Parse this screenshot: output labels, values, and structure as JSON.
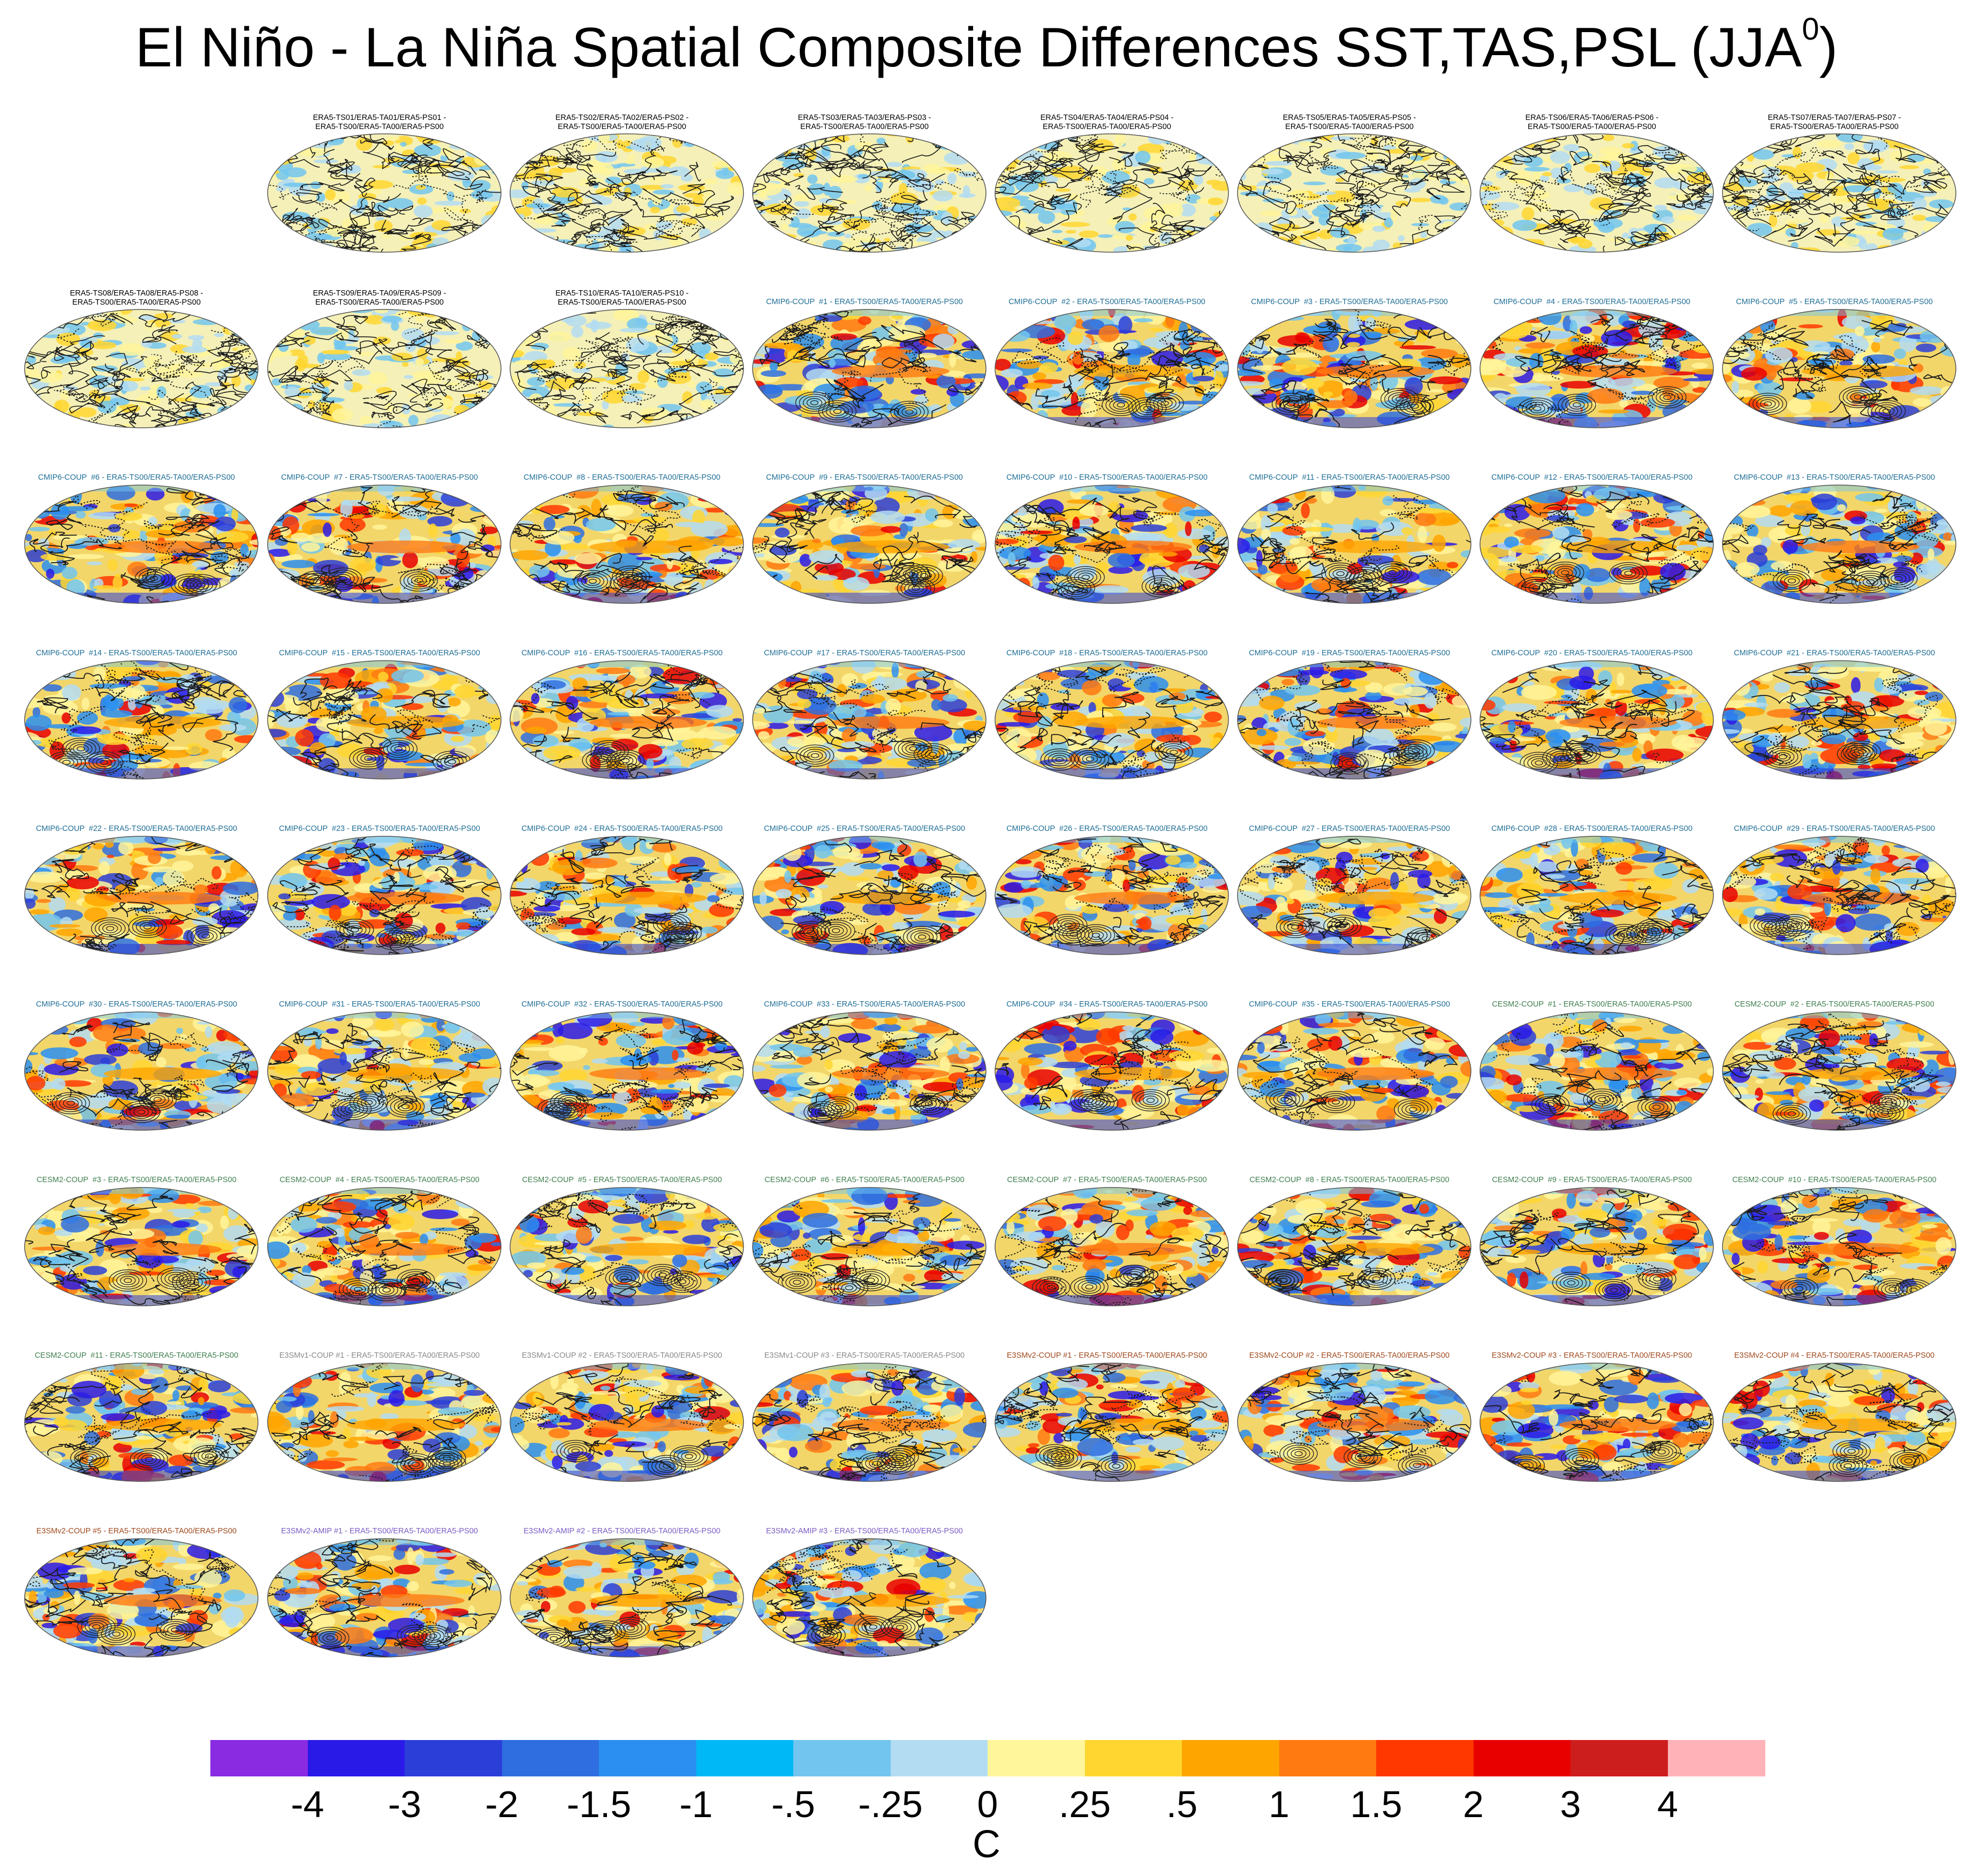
{
  "title": {
    "text": "El Niño - La Niña Spatial Composite Differences SST,TAS,PSL (JJA",
    "superscript": "0",
    "close": ")"
  },
  "panels": [
    {
      "label": "ERA5-TS01/ERA5-TA01/ERA5-PS01 -\nERA5-TS00/ERA5-TA00/ERA5-PS00",
      "group": "era5"
    },
    {
      "label": "ERA5-TS02/ERA5-TA02/ERA5-PS02 -\nERA5-TS00/ERA5-TA00/ERA5-PS00",
      "group": "era5"
    },
    {
      "label": "ERA5-TS03/ERA5-TA03/ERA5-PS03 -\nERA5-TS00/ERA5-TA00/ERA5-PS00",
      "group": "era5"
    },
    {
      "label": "ERA5-TS04/ERA5-TA04/ERA5-PS04 -\nERA5-TS00/ERA5-TA00/ERA5-PS00",
      "group": "era5"
    },
    {
      "label": "ERA5-TS05/ERA5-TA05/ERA5-PS05 -\nERA5-TS00/ERA5-TA00/ERA5-PS00",
      "group": "era5"
    },
    {
      "label": "ERA5-TS06/ERA5-TA06/ERA5-PS06 -\nERA5-TS00/ERA5-TA00/ERA5-PS00",
      "group": "era5"
    },
    {
      "label": "ERA5-TS07/ERA5-TA07/ERA5-PS07 -\nERA5-TS00/ERA5-TA00/ERA5-PS00",
      "group": "era5"
    },
    {
      "label": "ERA5-TS08/ERA5-TA08/ERA5-PS08 -\nERA5-TS00/ERA5-TA00/ERA5-PS00",
      "group": "era5"
    },
    {
      "label": "ERA5-TS09/ERA5-TA09/ERA5-PS09 -\nERA5-TS00/ERA5-TA00/ERA5-PS00",
      "group": "era5"
    },
    {
      "label": "ERA5-TS10/ERA5-TA10/ERA5-PS10 -\nERA5-TS00/ERA5-TA00/ERA5-PS00",
      "group": "era5"
    },
    {
      "label": "CMIP6-COUP  #1 - ERA5-TS00/ERA5-TA00/ERA5-PS00",
      "group": "cmip6"
    },
    {
      "label": "CMIP6-COUP  #2 - ERA5-TS00/ERA5-TA00/ERA5-PS00",
      "group": "cmip6"
    },
    {
      "label": "CMIP6-COUP  #3 - ERA5-TS00/ERA5-TA00/ERA5-PS00",
      "group": "cmip6"
    },
    {
      "label": "CMIP6-COUP  #4 - ERA5-TS00/ERA5-TA00/ERA5-PS00",
      "group": "cmip6"
    },
    {
      "label": "CMIP6-COUP  #5 - ERA5-TS00/ERA5-TA00/ERA5-PS00",
      "group": "cmip6"
    },
    {
      "label": "CMIP6-COUP  #6 - ERA5-TS00/ERA5-TA00/ERA5-PS00",
      "group": "cmip6"
    },
    {
      "label": "CMIP6-COUP  #7 - ERA5-TS00/ERA5-TA00/ERA5-PS00",
      "group": "cmip6"
    },
    {
      "label": "CMIP6-COUP  #8 - ERA5-TS00/ERA5-TA00/ERA5-PS00",
      "group": "cmip6"
    },
    {
      "label": "CMIP6-COUP  #9 - ERA5-TS00/ERA5-TA00/ERA5-PS00",
      "group": "cmip6"
    },
    {
      "label": "CMIP6-COUP  #10 - ERA5-TS00/ERA5-TA00/ERA5-PS00",
      "group": "cmip6"
    },
    {
      "label": "CMIP6-COUP  #11 - ERA5-TS00/ERA5-TA00/ERA5-PS00",
      "group": "cmip6"
    },
    {
      "label": "CMIP6-COUP  #12 - ERA5-TS00/ERA5-TA00/ERA5-PS00",
      "group": "cmip6"
    },
    {
      "label": "CMIP6-COUP  #13 - ERA5-TS00/ERA5-TA00/ERA5-PS00",
      "group": "cmip6"
    },
    {
      "label": "CMIP6-COUP  #14 - ERA5-TS00/ERA5-TA00/ERA5-PS00",
      "group": "cmip6"
    },
    {
      "label": "CMIP6-COUP  #15 - ERA5-TS00/ERA5-TA00/ERA5-PS00",
      "group": "cmip6"
    },
    {
      "label": "CMIP6-COUP  #16 - ERA5-TS00/ERA5-TA00/ERA5-PS00",
      "group": "cmip6"
    },
    {
      "label": "CMIP6-COUP  #17 - ERA5-TS00/ERA5-TA00/ERA5-PS00",
      "group": "cmip6"
    },
    {
      "label": "CMIP6-COUP  #18 - ERA5-TS00/ERA5-TA00/ERA5-PS00",
      "group": "cmip6"
    },
    {
      "label": "CMIP6-COUP  #19 - ERA5-TS00/ERA5-TA00/ERA5-PS00",
      "group": "cmip6"
    },
    {
      "label": "CMIP6-COUP  #20 - ERA5-TS00/ERA5-TA00/ERA5-PS00",
      "group": "cmip6"
    },
    {
      "label": "CMIP6-COUP  #21 - ERA5-TS00/ERA5-TA00/ERA5-PS00",
      "group": "cmip6"
    },
    {
      "label": "CMIP6-COUP  #22 - ERA5-TS00/ERA5-TA00/ERA5-PS00",
      "group": "cmip6"
    },
    {
      "label": "CMIP6-COUP  #23 - ERA5-TS00/ERA5-TA00/ERA5-PS00",
      "group": "cmip6"
    },
    {
      "label": "CMIP6-COUP  #24 - ERA5-TS00/ERA5-TA00/ERA5-PS00",
      "group": "cmip6"
    },
    {
      "label": "CMIP6-COUP  #25 - ERA5-TS00/ERA5-TA00/ERA5-PS00",
      "group": "cmip6"
    },
    {
      "label": "CMIP6-COUP  #26 - ERA5-TS00/ERA5-TA00/ERA5-PS00",
      "group": "cmip6"
    },
    {
      "label": "CMIP6-COUP  #27 - ERA5-TS00/ERA5-TA00/ERA5-PS00",
      "group": "cmip6"
    },
    {
      "label": "CMIP6-COUP  #28 - ERA5-TS00/ERA5-TA00/ERA5-PS00",
      "group": "cmip6"
    },
    {
      "label": "CMIP6-COUP  #29 - ERA5-TS00/ERA5-TA00/ERA5-PS00",
      "group": "cmip6"
    },
    {
      "label": "CMIP6-COUP  #30 - ERA5-TS00/ERA5-TA00/ERA5-PS00",
      "group": "cmip6"
    },
    {
      "label": "CMIP6-COUP  #31 - ERA5-TS00/ERA5-TA00/ERA5-PS00",
      "group": "cmip6"
    },
    {
      "label": "CMIP6-COUP  #32 - ERA5-TS00/ERA5-TA00/ERA5-PS00",
      "group": "cmip6"
    },
    {
      "label": "CMIP6-COUP  #33 - ERA5-TS00/ERA5-TA00/ERA5-PS00",
      "group": "cmip6"
    },
    {
      "label": "CMIP6-COUP  #34 - ERA5-TS00/ERA5-TA00/ERA5-PS00",
      "group": "cmip6"
    },
    {
      "label": "CMIP6-COUP  #35 - ERA5-TS00/ERA5-TA00/ERA5-PS00",
      "group": "cmip6"
    },
    {
      "label": "CESM2-COUP  #1 - ERA5-TS00/ERA5-TA00/ERA5-PS00",
      "group": "cesm2"
    },
    {
      "label": "CESM2-COUP  #2 - ERA5-TS00/ERA5-TA00/ERA5-PS00",
      "group": "cesm2"
    },
    {
      "label": "CESM2-COUP  #3 - ERA5-TS00/ERA5-TA00/ERA5-PS00",
      "group": "cesm2"
    },
    {
      "label": "CESM2-COUP  #4 - ERA5-TS00/ERA5-TA00/ERA5-PS00",
      "group": "cesm2"
    },
    {
      "label": "CESM2-COUP  #5 - ERA5-TS00/ERA5-TA00/ERA5-PS00",
      "group": "cesm2"
    },
    {
      "label": "CESM2-COUP  #6 - ERA5-TS00/ERA5-TA00/ERA5-PS00",
      "group": "cesm2"
    },
    {
      "label": "CESM2-COUP  #7 - ERA5-TS00/ERA5-TA00/ERA5-PS00",
      "group": "cesm2"
    },
    {
      "label": "CESM2-COUP  #8 - ERA5-TS00/ERA5-TA00/ERA5-PS00",
      "group": "cesm2"
    },
    {
      "label": "CESM2-COUP  #9 - ERA5-TS00/ERA5-TA00/ERA5-PS00",
      "group": "cesm2"
    },
    {
      "label": "CESM2-COUP  #10 - ERA5-TS00/ERA5-TA00/ERA5-PS00",
      "group": "cesm2"
    },
    {
      "label": "CESM2-COUP  #11 - ERA5-TS00/ERA5-TA00/ERA5-PS00",
      "group": "cesm2"
    },
    {
      "label": "E3SMv1-COUP #1 - ERA5-TS00/ERA5-TA00/ERA5-PS00",
      "group": "e3smv1"
    },
    {
      "label": "E3SMv1-COUP #2 - ERA5-TS00/ERA5-TA00/ERA5-PS00",
      "group": "e3smv1"
    },
    {
      "label": "E3SMv1-COUP #3 - ERA5-TS00/ERA5-TA00/ERA5-PS00",
      "group": "e3smv1"
    },
    {
      "label": "E3SMv2-COUP #1 - ERA5-TS00/ERA5-TA00/ERA5-PS00",
      "group": "e3smv2"
    },
    {
      "label": "E3SMv2-COUP #2 - ERA5-TS00/ERA5-TA00/ERA5-PS00",
      "group": "e3smv2"
    },
    {
      "label": "E3SMv2-COUP #3 - ERA5-TS00/ERA5-TA00/ERA5-PS00",
      "group": "e3smv2"
    },
    {
      "label": "E3SMv2-COUP #4 - ERA5-TS00/ERA5-TA00/ERA5-PS00",
      "group": "e3smv2"
    },
    {
      "label": "E3SMv2-COUP #5 - ERA5-TS00/ERA5-TA00/ERA5-PS00",
      "group": "e3smv2"
    },
    {
      "label": "E3SMv2-AMIP #1 - ERA5-TS00/ERA5-TA00/ERA5-PS00",
      "group": "amip"
    },
    {
      "label": "E3SMv2-AMIP #2 - ERA5-TS00/ERA5-TA00/ERA5-PS00",
      "group": "amip"
    },
    {
      "label": "E3SMv2-AMIP #3 - ERA5-TS00/ERA5-TA00/ERA5-PS00",
      "group": "amip"
    }
  ],
  "label_colors": {
    "era5": "#000000",
    "cmip6": "#1f6e96",
    "cesm2": "#3f7f4f",
    "e3smv1": "#8a8a8a",
    "e3smv2": "#a04a1e",
    "amip": "#7a5cc4"
  },
  "colorbar": {
    "colors": [
      "#8a2be2",
      "#2a1ae8",
      "#2b3fd8",
      "#2e6ee0",
      "#2a8ff0",
      "#00b8f5",
      "#72c5ee",
      "#b3dcf2",
      "#fff59a",
      "#ffd630",
      "#ffa500",
      "#ff7a10",
      "#ff3800",
      "#e80000",
      "#cd1e1e",
      "#ffb3b8"
    ],
    "tick_labels": [
      "-4",
      "-3",
      "-2",
      "-1.5",
      "-1",
      "-.5",
      "-.25",
      "0",
      ".25",
      ".5",
      "1",
      "1.5",
      "2",
      "3",
      "4"
    ],
    "units": "C"
  }
}
